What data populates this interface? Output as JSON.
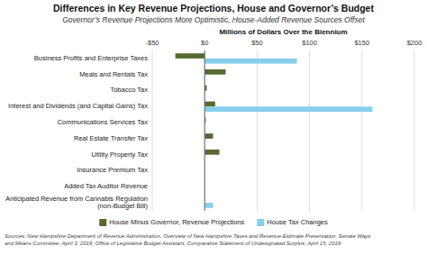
{
  "chart_data": {
    "type": "bar",
    "orientation": "horizontal",
    "title": "Differences in Key Revenue Projections, House and Governor’s Budget",
    "subtitle": "Governor’s Revenue Projections More Optimistic, House-Added Revenue Sources Offset",
    "xlabel": "Millions of Dollars Over the Biennium",
    "categories": [
      "Business Profits and Enterprise Taxes",
      "Meals and Rentals Tax",
      "Tobacco Tax",
      "Interest and Dividends (and Capital Gains) Tax",
      "Communications Services Tax",
      "Real Estate Transfer Tax",
      "Utility Property Tax",
      "Insurance Premium Tax",
      "Added Tax Auditor Revenue",
      "Anticipated Revenue from Cannabis Regulation\n(non-Budget Bill)"
    ],
    "series": [
      {
        "name": "House Minus Governor, Revenue Projections",
        "color": "#556b2f",
        "values": [
          -28,
          20,
          2,
          10,
          1,
          8,
          14,
          0,
          0,
          0
        ]
      },
      {
        "name": "House Tax Changes",
        "color": "#87ceeb",
        "values": [
          88,
          0,
          0,
          160,
          0,
          0,
          0,
          0,
          0,
          8
        ]
      }
    ],
    "xlim": [
      -50,
      200
    ],
    "xticks": [
      {
        "value": -50,
        "label": "-$50"
      },
      {
        "value": 0,
        "label": "$0"
      },
      {
        "value": 50,
        "label": "$50"
      },
      {
        "value": 100,
        "label": "$100"
      },
      {
        "value": 150,
        "label": "$150"
      },
      {
        "value": 200,
        "label": "$200"
      }
    ],
    "grid": true,
    "legend": "bottom",
    "annotations": [
      "Sources: New Hampshire Department of Revenue Administration, Overview of New Hampshire Taxes and Revenue Estimate Presentation, Senate Ways\nand Means Committee, April 3, 2019; Office of Legislative Budget Assistant, Comparative Statement of Undesignated Surplus, April 15, 2019."
    ]
  }
}
